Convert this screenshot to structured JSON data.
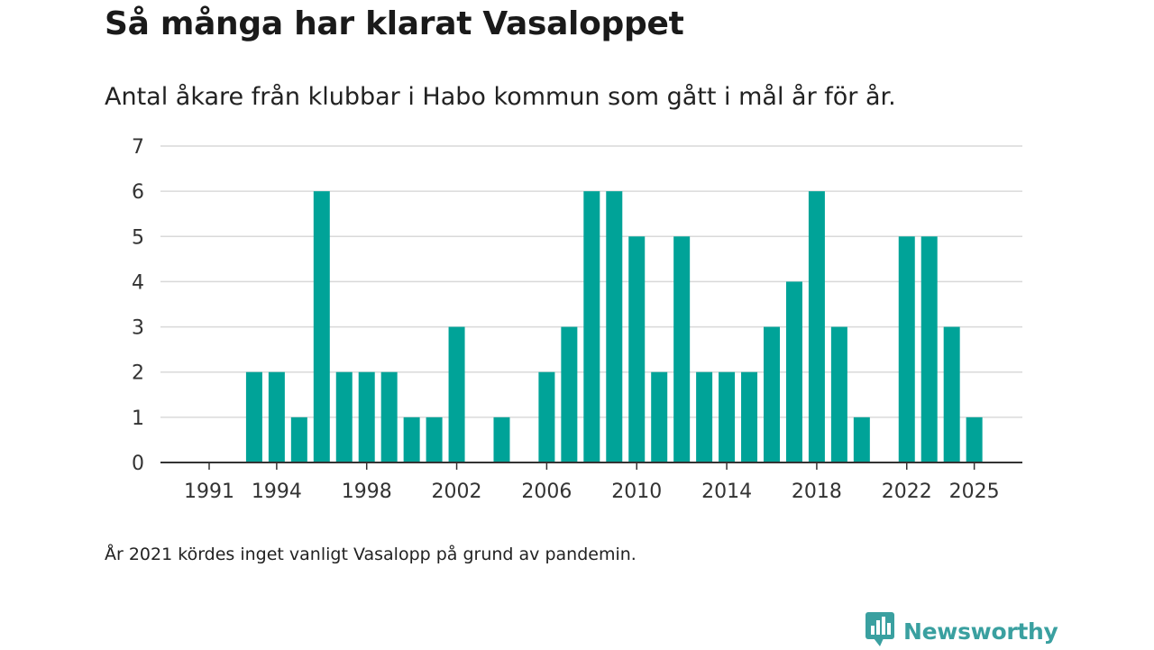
{
  "header": {
    "title": "Så många har klarat Vasaloppet",
    "subtitle": "Antal åkare från klubbar i Habo kommun som gått i mål år för år."
  },
  "footer": {
    "note": "År 2021 kördes inget vanligt Vasalopp på grund av pandemin.",
    "brand": "Newsworthy",
    "brand_icon": "chart-bubble-icon"
  },
  "colors": {
    "bar": "#00a398",
    "grid": "#d9d9d9",
    "axis": "#333333",
    "brand": "#3aa0a0"
  },
  "chart_data": {
    "type": "bar",
    "title": "Så många har klarat Vasaloppet",
    "subtitle": "Antal åkare från klubbar i Habo kommun som gått i mål år för år.",
    "xlabel": "",
    "ylabel": "",
    "categories": [
      1991,
      1992,
      1993,
      1994,
      1995,
      1996,
      1997,
      1998,
      1999,
      2000,
      2001,
      2002,
      2003,
      2004,
      2005,
      2006,
      2007,
      2008,
      2009,
      2010,
      2011,
      2012,
      2013,
      2014,
      2015,
      2016,
      2017,
      2018,
      2019,
      2020,
      2021,
      2022,
      2023,
      2024,
      2025
    ],
    "values": [
      0,
      0,
      2,
      2,
      1,
      6,
      2,
      2,
      2,
      1,
      1,
      3,
      0,
      1,
      0,
      2,
      3,
      6,
      6,
      5,
      2,
      5,
      2,
      2,
      2,
      3,
      4,
      6,
      3,
      1,
      0,
      5,
      5,
      3,
      1
    ],
    "ylim": [
      0,
      7
    ],
    "yticks": [
      "0",
      "1",
      "2",
      "3",
      "4",
      "5",
      "6",
      "7"
    ],
    "xticks": [
      "1991",
      "1994",
      "1998",
      "2002",
      "2006",
      "2010",
      "2014",
      "2018",
      "2022",
      "2025"
    ],
    "grid": true,
    "legend": "none"
  }
}
